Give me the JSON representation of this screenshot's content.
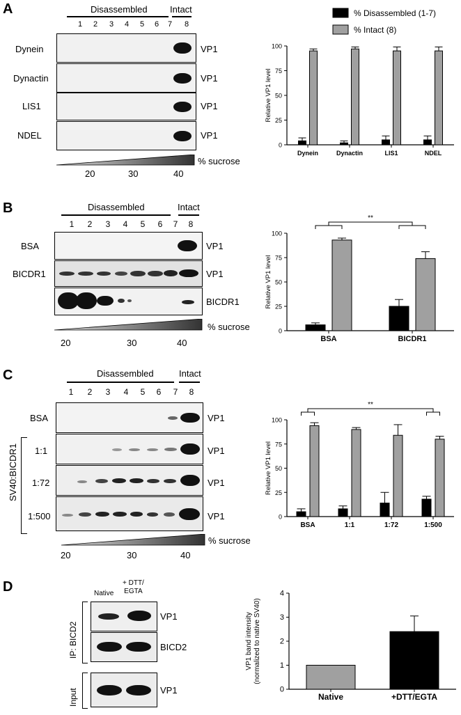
{
  "panels": [
    {
      "id": "A",
      "headers": {
        "disassembled": "Disassembled",
        "intact": "Intact"
      },
      "lanes": [
        "1",
        "2",
        "3",
        "4",
        "5",
        "6",
        "7",
        "8"
      ],
      "rows": [
        {
          "left": "Dynein",
          "right": "VP1"
        },
        {
          "left": "Dynactin",
          "right": "VP1"
        },
        {
          "left": "LIS1",
          "right": "VP1"
        },
        {
          "left": "NDEL",
          "right": "VP1"
        }
      ],
      "gradient": {
        "ticks": [
          "20",
          "30",
          "40"
        ],
        "label": "% sucrose"
      }
    },
    {
      "id": "B",
      "headers": {
        "disassembled": "Disassembled",
        "intact": "Intact"
      },
      "lanes": [
        "1",
        "2",
        "3",
        "4",
        "5",
        "6",
        "7",
        "8"
      ],
      "rows": [
        {
          "left": "BSA",
          "right": "VP1"
        },
        {
          "left": "BICDR1",
          "right": "VP1"
        },
        {
          "left": "",
          "right": "BICDR1"
        }
      ],
      "gradient": {
        "ticks": [
          "20",
          "30",
          "40"
        ],
        "label": "% sucrose"
      }
    },
    {
      "id": "C",
      "headers": {
        "disassembled": "Disassembled",
        "intact": "Intact"
      },
      "lanes": [
        "1",
        "2",
        "3",
        "4",
        "5",
        "6",
        "7",
        "8"
      ],
      "rows": [
        {
          "left": "BSA",
          "right": "VP1"
        },
        {
          "left": "1:1",
          "right": "VP1"
        },
        {
          "left": "1:72",
          "right": "VP1"
        },
        {
          "left": "1:500",
          "right": "VP1"
        }
      ],
      "group_label": "SV40:BICDR1",
      "gradient": {
        "ticks": [
          "20",
          "30",
          "40"
        ],
        "label": "% sucrose"
      }
    },
    {
      "id": "D",
      "columns": [
        "Native",
        "+ DTT/\nEGTA"
      ],
      "rows": [
        {
          "right": "VP1"
        },
        {
          "right": "BICD2"
        },
        {
          "right": "VP1"
        }
      ],
      "group_labels": [
        "IP: BICD2",
        "Input"
      ]
    }
  ],
  "chart_data": [
    {
      "panel": "A",
      "type": "bar",
      "title": "",
      "ylabel": "Relative VP1 level",
      "xlabel": "",
      "categories": [
        "Dynein",
        "Dynactin",
        "LIS1",
        "NDEL"
      ],
      "ylim": [
        0,
        100
      ],
      "yticks": [
        "0",
        "25",
        "50",
        "75",
        "100"
      ],
      "legend": {
        "placement": "top",
        "entries": [
          "% Disassembled (1-7)",
          "% Intact (8)"
        ]
      },
      "series": [
        {
          "name": "% Disassembled (1-7)",
          "color": "#000000",
          "values": [
            4,
            2,
            5,
            5
          ],
          "errors": [
            3,
            2,
            4,
            4
          ]
        },
        {
          "name": "% Intact (8)",
          "color": "#a0a0a0",
          "values": [
            95,
            97,
            95,
            95
          ],
          "errors": [
            2,
            2,
            4,
            4
          ]
        }
      ],
      "annotations": []
    },
    {
      "panel": "B",
      "type": "bar",
      "title": "",
      "ylabel": "Relative VP1 level",
      "xlabel": "",
      "categories": [
        "BSA",
        "BICDR1"
      ],
      "ylim": [
        0,
        100
      ],
      "yticks": [
        "0",
        "25",
        "50",
        "75",
        "100"
      ],
      "series": [
        {
          "name": "% Disassembled (1-7)",
          "color": "#000000",
          "values": [
            6,
            25
          ],
          "errors": [
            2,
            7
          ]
        },
        {
          "name": "% Intact (8)",
          "color": "#a0a0a0",
          "values": [
            93,
            74
          ],
          "errors": [
            2,
            7
          ]
        }
      ],
      "annotations": [
        "**"
      ]
    },
    {
      "panel": "C",
      "type": "bar",
      "title": "",
      "ylabel": "Relative VP1 level",
      "xlabel": "",
      "categories": [
        "BSA",
        "1:1",
        "1:72",
        "1:500"
      ],
      "ylim": [
        0,
        100
      ],
      "yticks": [
        "0",
        "25",
        "50",
        "75",
        "100"
      ],
      "series": [
        {
          "name": "% Disassembled (1-7)",
          "color": "#000000",
          "values": [
            5,
            8,
            14,
            18
          ],
          "errors": [
            3,
            3,
            11,
            3
          ]
        },
        {
          "name": "% Intact (8)",
          "color": "#a0a0a0",
          "values": [
            94,
            90,
            84,
            80
          ],
          "errors": [
            3,
            2,
            11,
            3
          ]
        }
      ],
      "annotations": [
        "**"
      ]
    },
    {
      "panel": "D",
      "type": "bar",
      "title": "",
      "ylabel": "VP1 band intensity\n(normalized to native SV40)",
      "xlabel": "",
      "categories": [
        "Native",
        "+DTT/EGTA"
      ],
      "ylim": [
        0,
        4
      ],
      "yticks": [
        "0",
        "1",
        "2",
        "3",
        "4"
      ],
      "series": [
        {
          "name": "",
          "colors": [
            "#a0a0a0",
            "#000000"
          ],
          "values": [
            1.0,
            2.4
          ],
          "errors": [
            0,
            0.65
          ]
        }
      ],
      "annotations": []
    }
  ]
}
